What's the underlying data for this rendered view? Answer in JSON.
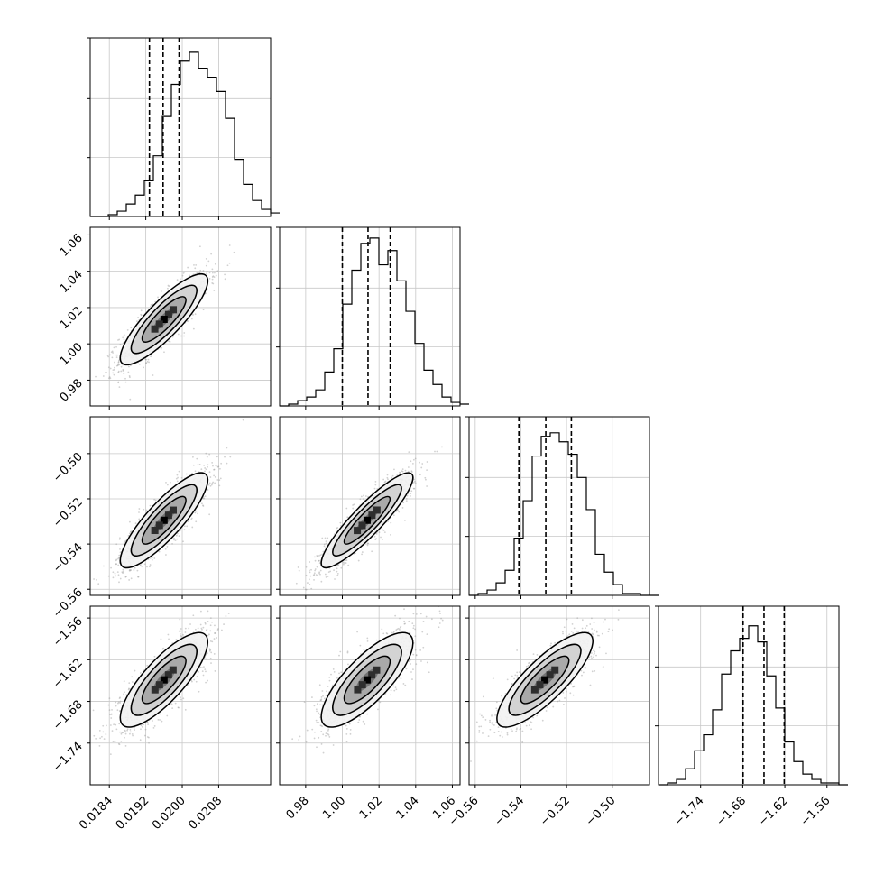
{
  "chart_data": {
    "type": "corner",
    "title": "",
    "parameters": [
      {
        "label": "",
        "range": [
          0.01798,
          0.02194
        ],
        "ticks": [
          0.0184,
          0.0192,
          0.02,
          0.0208
        ],
        "tick_labels": [
          "0.0184",
          "0.0192",
          "0.0200",
          "0.0208"
        ],
        "quantiles": [
          0.01928,
          0.01958,
          0.01993
        ],
        "hist_start": 0.01798,
        "hist_step": 0.000198,
        "histogram": [
          0,
          0,
          0.01,
          0.03,
          0.07,
          0.12,
          0.2,
          0.34,
          0.56,
          0.74,
          0.87,
          0.92,
          0.83,
          0.78,
          0.7,
          0.55,
          0.32,
          0.18,
          0.09,
          0.04,
          0.02
        ]
      },
      {
        "label": "",
        "range": [
          0.9658,
          1.0642
        ],
        "ticks": [
          0.98,
          1.0,
          1.02,
          1.04,
          1.06
        ],
        "tick_labels": [
          "0.98",
          "1.00",
          "1.02",
          "1.04",
          "1.06"
        ],
        "quantiles": [
          1.0,
          1.014,
          1.0261
        ],
        "hist_start": 0.9658,
        "hist_step": 0.00492,
        "histogram": [
          0,
          0.01,
          0.03,
          0.05,
          0.09,
          0.19,
          0.32,
          0.57,
          0.76,
          0.91,
          0.94,
          0.79,
          0.87,
          0.7,
          0.53,
          0.35,
          0.2,
          0.12,
          0.05,
          0.02,
          0.01
        ]
      },
      {
        "label": "",
        "range": [
          -0.5627,
          -0.4837
        ],
        "ticks": [
          -0.56,
          -0.54,
          -0.52,
          -0.5
        ],
        "tick_labels": [
          "−0.56",
          "−0.54",
          "−0.52",
          "−0.50"
        ],
        "quantiles": [
          -0.5409,
          -0.5291,
          -0.5179
        ],
        "hist_start": -0.5627,
        "hist_step": 0.00395,
        "histogram": [
          0,
          0.01,
          0.03,
          0.07,
          0.14,
          0.32,
          0.53,
          0.78,
          0.89,
          0.91,
          0.86,
          0.79,
          0.66,
          0.48,
          0.23,
          0.13,
          0.06,
          0.01,
          0.01,
          0,
          0
        ]
      },
      {
        "label": "",
        "range": [
          -1.8,
          -1.543
        ],
        "ticks": [
          -1.74,
          -1.68,
          -1.62,
          -1.56
        ],
        "tick_labels": [
          "−1.74",
          "−1.68",
          "−1.62",
          "−1.56"
        ],
        "quantiles": [
          -1.6795,
          -1.6497,
          -1.6209
        ],
        "hist_start": -1.8,
        "hist_step": 0.01285,
        "histogram": [
          0,
          0.01,
          0.03,
          0.09,
          0.19,
          0.28,
          0.42,
          0.62,
          0.75,
          0.82,
          0.89,
          0.8,
          0.61,
          0.43,
          0.24,
          0.13,
          0.06,
          0.03,
          0.01,
          0.01,
          0
        ]
      }
    ],
    "pairs": [
      {
        "x": 0,
        "y": 1,
        "center": [
          0.0196,
          1.0135
        ],
        "std": [
          0.00048,
          0.0125
        ],
        "corr": 0.85
      },
      {
        "x": 0,
        "y": 2,
        "center": [
          0.0196,
          -0.5295
        ],
        "std": [
          0.00048,
          0.0105
        ],
        "corr": 0.85
      },
      {
        "x": 1,
        "y": 2,
        "center": [
          1.0135,
          -0.5295
        ],
        "std": [
          0.0125,
          0.0105
        ],
        "corr": 0.9
      },
      {
        "x": 0,
        "y": 3,
        "center": [
          0.0196,
          -1.649
        ],
        "std": [
          0.00048,
          0.034
        ],
        "corr": 0.8
      },
      {
        "x": 1,
        "y": 3,
        "center": [
          1.0135,
          -1.649
        ],
        "std": [
          0.0125,
          0.034
        ],
        "corr": 0.78
      },
      {
        "x": 2,
        "y": 3,
        "center": [
          -0.5295,
          -1.649
        ],
        "std": [
          0.0105,
          0.034
        ],
        "corr": 0.82
      }
    ],
    "contour_levels_sigma": [
      0.5,
      1.0,
      1.5,
      2.0
    ],
    "grid": true,
    "legend": "none"
  }
}
